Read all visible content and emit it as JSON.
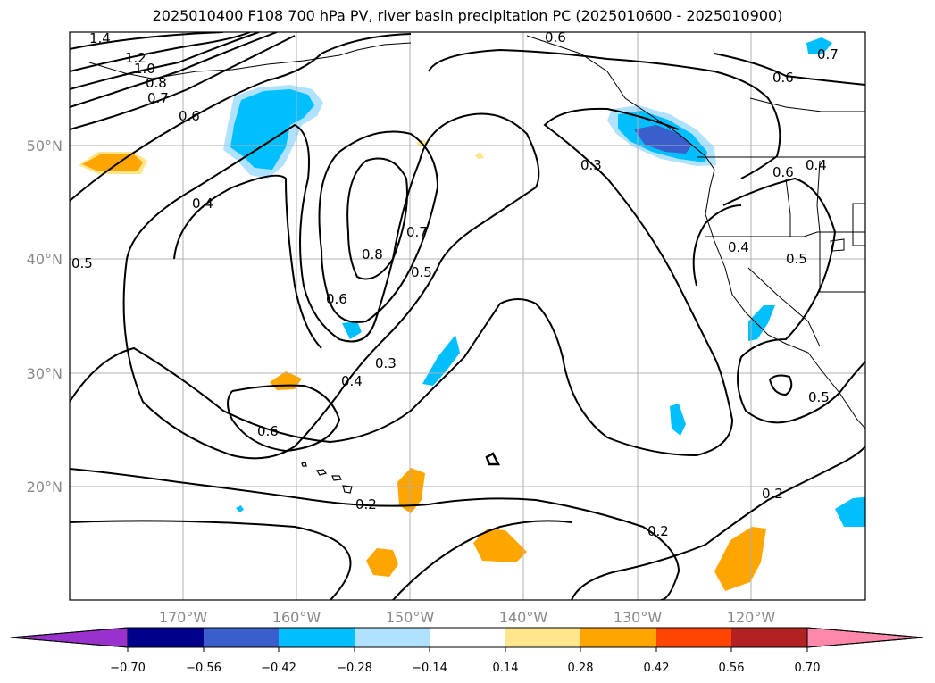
{
  "title": "2025010400 F108 700 hPa PV, river basin precipitation PC (2025010600 - 2025010900)",
  "map": {
    "lon_range": [
      -180,
      -110
    ],
    "lat_range": [
      10,
      60
    ],
    "lon_labels": [
      "170°W",
      "160°W",
      "150°W",
      "140°W",
      "130°W",
      "120°W"
    ],
    "lat_labels": [
      "20°N",
      "30°N",
      "40°N",
      "50°N"
    ]
  },
  "contour_labels": [
    "1.4",
    "1.2",
    "1.0",
    "0.8",
    "0.7",
    "0.6",
    "0.4",
    "0.5",
    "0.6",
    "0.8",
    "0.7",
    "0.5",
    "0.6",
    "0.4",
    "0.3",
    "0.6",
    "0.2",
    "0.2",
    "0.2",
    "0.3",
    "0.4",
    "0.5",
    "0.6",
    "0.6",
    "0.7",
    "0.5",
    "0.4"
  ],
  "colorbar": {
    "ticks": [
      "−0.70",
      "−0.56",
      "−0.42",
      "−0.28",
      "−0.14",
      "0.14",
      "0.28",
      "0.42",
      "0.56",
      "0.70"
    ],
    "colors": [
      "#9932cc",
      "#00008b",
      "#3a5fcd",
      "#00bfff",
      "#b0e2ff",
      "#ffffff",
      "#ffe68c",
      "#ffa500",
      "#ff4500",
      "#b22222",
      "#ff88aa"
    ]
  }
}
